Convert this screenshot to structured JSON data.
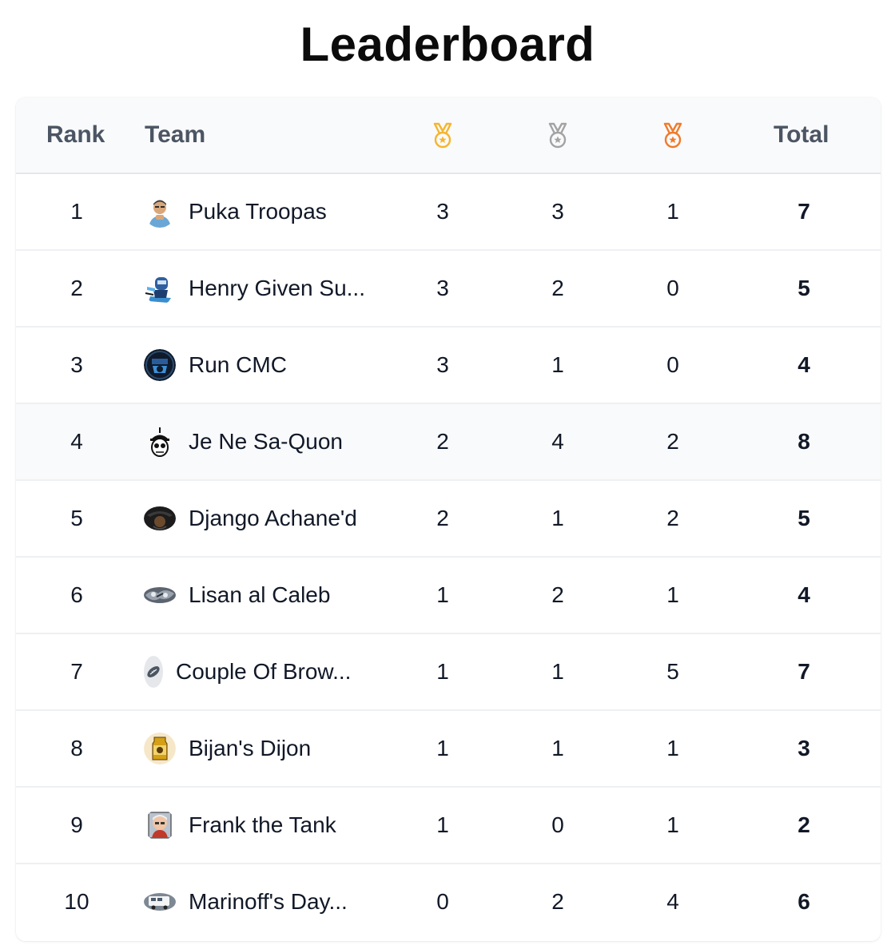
{
  "title": "Leaderboard",
  "header": {
    "rank": "Rank",
    "team": "Team",
    "total": "Total",
    "medals": {
      "gold": {
        "icon": "gold-medal-icon",
        "color": "#f5b52e"
      },
      "silver": {
        "icon": "silver-medal-icon",
        "color": "#a3a3a3"
      },
      "bronze": {
        "icon": "bronze-medal-icon",
        "color": "#f07a2a"
      }
    }
  },
  "rows": [
    {
      "rank": "1",
      "team": "Puka Troopas",
      "gold": "3",
      "silver": "3",
      "bronze": "1",
      "total": "7",
      "avatar": "puka-troopas-avatar"
    },
    {
      "rank": "2",
      "team": "Henry Given Su...",
      "gold": "3",
      "silver": "2",
      "bronze": "0",
      "total": "5",
      "avatar": "henry-given-avatar"
    },
    {
      "rank": "3",
      "team": "Run CMC",
      "gold": "3",
      "silver": "1",
      "bronze": "0",
      "total": "4",
      "avatar": "run-cmc-avatar"
    },
    {
      "rank": "4",
      "team": "Je Ne Sa-Quon",
      "gold": "2",
      "silver": "4",
      "bronze": "2",
      "total": "8",
      "avatar": "je-ne-sa-quon-avatar"
    },
    {
      "rank": "5",
      "team": "Django Achane'd",
      "gold": "2",
      "silver": "1",
      "bronze": "2",
      "total": "5",
      "avatar": "django-achaned-avatar"
    },
    {
      "rank": "6",
      "team": "Lisan al Caleb",
      "gold": "1",
      "silver": "2",
      "bronze": "1",
      "total": "4",
      "avatar": "lisan-al-caleb-avatar"
    },
    {
      "rank": "7",
      "team": "Couple Of Brow...",
      "gold": "1",
      "silver": "1",
      "bronze": "5",
      "total": "7",
      "avatar": "football-icon"
    },
    {
      "rank": "8",
      "team": "Bijan's Dijon",
      "gold": "1",
      "silver": "1",
      "bronze": "1",
      "total": "3",
      "avatar": "bijans-dijon-avatar"
    },
    {
      "rank": "9",
      "team": "Frank the Tank",
      "gold": "1",
      "silver": "0",
      "bronze": "1",
      "total": "2",
      "avatar": "frank-the-tank-avatar"
    },
    {
      "rank": "10",
      "team": "Marinoff's Day...",
      "gold": "0",
      "silver": "2",
      "bronze": "4",
      "total": "6",
      "avatar": "marinoffs-avatar"
    }
  ]
}
